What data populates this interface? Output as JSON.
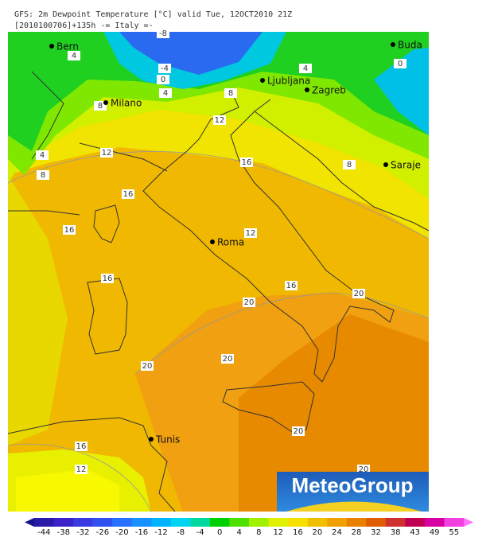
{
  "header": {
    "line1": "GFS: 2m Dewpoint Temperature [°C] valid Tue, 12OCT2010 21Z",
    "line2": "[2010100706]+135h -= Italy =-"
  },
  "cities": [
    "Bern",
    "Milano",
    "Ljubljana",
    "Zagreb",
    "Buda",
    "Saraje",
    "Roma",
    "Tunis"
  ],
  "contour_labels": [
    "-8",
    "4",
    "-4",
    "0",
    "4",
    "4",
    "8",
    "0",
    "8",
    "12",
    "4",
    "12",
    "8",
    "16",
    "8",
    "16",
    "16",
    "12",
    "16",
    "16",
    "20",
    "20",
    "20",
    "20",
    "20",
    "16",
    "12",
    "20"
  ],
  "colorbar": {
    "ticks": [
      -44,
      -38,
      -32,
      -26,
      -20,
      -16,
      -12,
      -8,
      -4,
      0,
      4,
      8,
      12,
      16,
      20,
      24,
      28,
      32,
      38,
      43,
      49,
      55
    ],
    "colors": [
      "#14148c",
      "#2a1aa8",
      "#3a22c8",
      "#3a3ae0",
      "#3050f0",
      "#2870ff",
      "#1890ff",
      "#00b4ff",
      "#00d4f0",
      "#00d8a0",
      "#00d000",
      "#50e000",
      "#a0f000",
      "#e0f000",
      "#f8e000",
      "#f0c000",
      "#f0a000",
      "#e88000",
      "#e05c00",
      "#d03030",
      "#c00050",
      "#d800a0",
      "#f040e0",
      "#ff70ff"
    ]
  },
  "logo": "MeteoGroup"
}
